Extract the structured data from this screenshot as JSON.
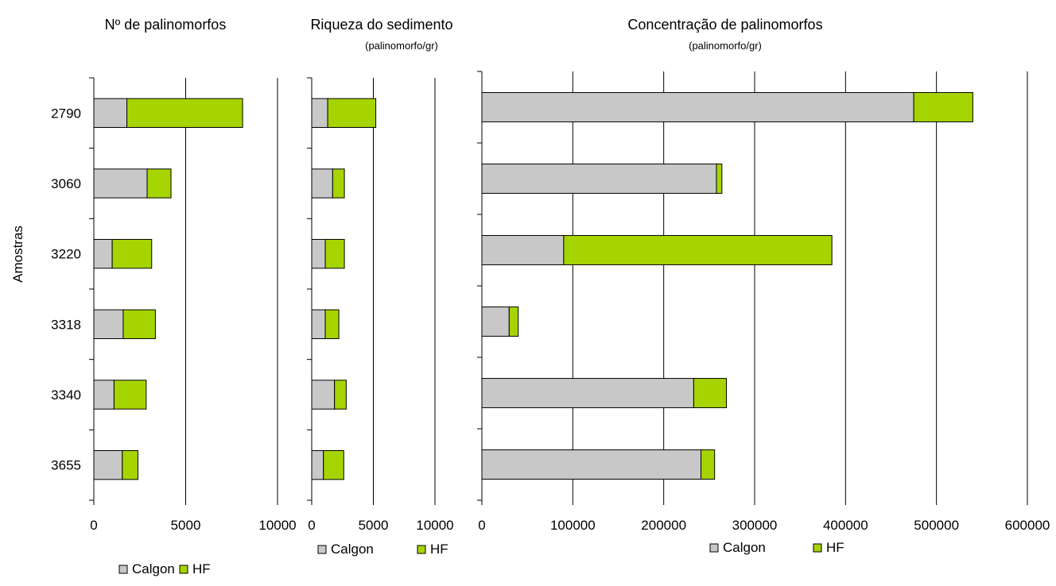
{
  "y_axis_label": "Amostras",
  "colors": {
    "calgon": "#c8c8c8",
    "hf": "#a6d400"
  },
  "chart_data": [
    {
      "type": "bar",
      "orientation": "horizontal",
      "stacked": true,
      "title": "Nº de palinomorfos",
      "subtitle": "",
      "ylabel": "Amostras",
      "categories": [
        "2790",
        "3060",
        "3220",
        "3318",
        "3340",
        "3655"
      ],
      "series": [
        {
          "name": "Calgon",
          "values": [
            1800,
            2900,
            1000,
            1600,
            1100,
            1550
          ]
        },
        {
          "name": "HF",
          "values": [
            6300,
            1300,
            2150,
            1750,
            1750,
            850
          ]
        }
      ],
      "xlim": [
        0,
        10000
      ],
      "xticks": [
        "0",
        "5000",
        "10000"
      ],
      "grid": true,
      "legend": {
        "position": "bottom",
        "entries": [
          "Calgon",
          "HF"
        ]
      }
    },
    {
      "type": "bar",
      "orientation": "horizontal",
      "stacked": true,
      "title": "Riqueza do sedimento",
      "subtitle": "(palinomorfo/gr)",
      "categories": [
        "2790",
        "3060",
        "3220",
        "3318",
        "3340",
        "3655"
      ],
      "series": [
        {
          "name": "Calgon",
          "values": [
            1300,
            1700,
            1100,
            1100,
            1850,
            950
          ]
        },
        {
          "name": "HF",
          "values": [
            3900,
            950,
            1550,
            1100,
            950,
            1650
          ]
        }
      ],
      "xlim": [
        0,
        10000
      ],
      "xticks": [
        "0",
        "5000",
        "10000"
      ],
      "grid": true,
      "legend": {
        "position": "bottom",
        "entries": [
          "Calgon",
          "HF"
        ]
      }
    },
    {
      "type": "bar",
      "orientation": "horizontal",
      "stacked": true,
      "title": "Concentração de palinomorfos",
      "subtitle": "(palinomorfo/gr)",
      "categories": [
        "2790",
        "3060",
        "3220",
        "3318",
        "3340",
        "3655"
      ],
      "series": [
        {
          "name": "Calgon",
          "values": [
            475000,
            258000,
            90000,
            30000,
            233000,
            241000
          ]
        },
        {
          "name": "HF",
          "values": [
            65000,
            6000,
            295000,
            10000,
            36000,
            15000
          ]
        }
      ],
      "xlim": [
        0,
        600000
      ],
      "xticks": [
        "0",
        "100000",
        "200000",
        "300000",
        "400000",
        "500000",
        "600000"
      ],
      "grid": true,
      "legend": {
        "position": "bottom",
        "entries": [
          "Calgon",
          "HF"
        ]
      }
    }
  ]
}
